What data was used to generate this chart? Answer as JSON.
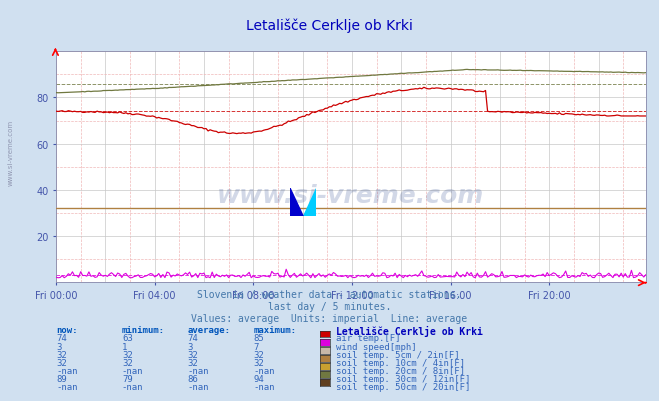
{
  "title": "Letališče Cerklje ob Krki",
  "bg_color": "#d0e0f0",
  "plot_bg_color": "#ffffff",
  "x_labels": [
    "Fri 00:00",
    "Fri 04:00",
    "Fri 08:00",
    "Fri 12:00",
    "Fri 16:00",
    "Fri 20:00"
  ],
  "x_ticks": [
    0,
    48,
    96,
    144,
    192,
    240
  ],
  "y_ticks": [
    20,
    40,
    60,
    80
  ],
  "subtitle1": "Slovenia / weather data - automatic stations.",
  "subtitle2": "last day / 5 minutes.",
  "subtitle3": "Values: average  Units: imperial  Line: average",
  "watermark": "www.si-vreme.com",
  "table_headers": [
    "now:",
    "minimum:",
    "average:",
    "maximum:"
  ],
  "table_col_header": "Letališče Cerklje ob Krki",
  "table_rows": [
    [
      "74",
      "63",
      "74",
      "85",
      "#cc0000",
      "air temp.[F]"
    ],
    [
      "3",
      "1",
      "3",
      "7",
      "#dd00dd",
      "wind speed[mph]"
    ],
    [
      "32",
      "32",
      "32",
      "32",
      "#c8b8a8",
      "soil temp. 5cm / 2in[F]"
    ],
    [
      "32",
      "32",
      "32",
      "32",
      "#b08040",
      "soil temp. 10cm / 4in[F]"
    ],
    [
      "-nan",
      "-nan",
      "-nan",
      "-nan",
      "#c8a030",
      "soil temp. 20cm / 8in[F]"
    ],
    [
      "89",
      "79",
      "86",
      "94",
      "#707840",
      "soil temp. 30cm / 12in[F]"
    ],
    [
      "-nan",
      "-nan",
      "-nan",
      "-nan",
      "#604020",
      "soil temp. 50cm / 20in[F]"
    ]
  ],
  "n_points": 288,
  "air_color": "#cc0000",
  "wind_color": "#dd00dd",
  "soil5_color": "#c8b8a8",
  "soil10_color": "#b08040",
  "soil30_color": "#707840",
  "avg_line_color_air": "#cc0000",
  "avg_line_color_wind": "#dd00dd",
  "avg_line_color_soil30": "#707840",
  "avg_line_color_soil5": "#c8b8a8",
  "avg_line_color_soil10": "#b08040"
}
